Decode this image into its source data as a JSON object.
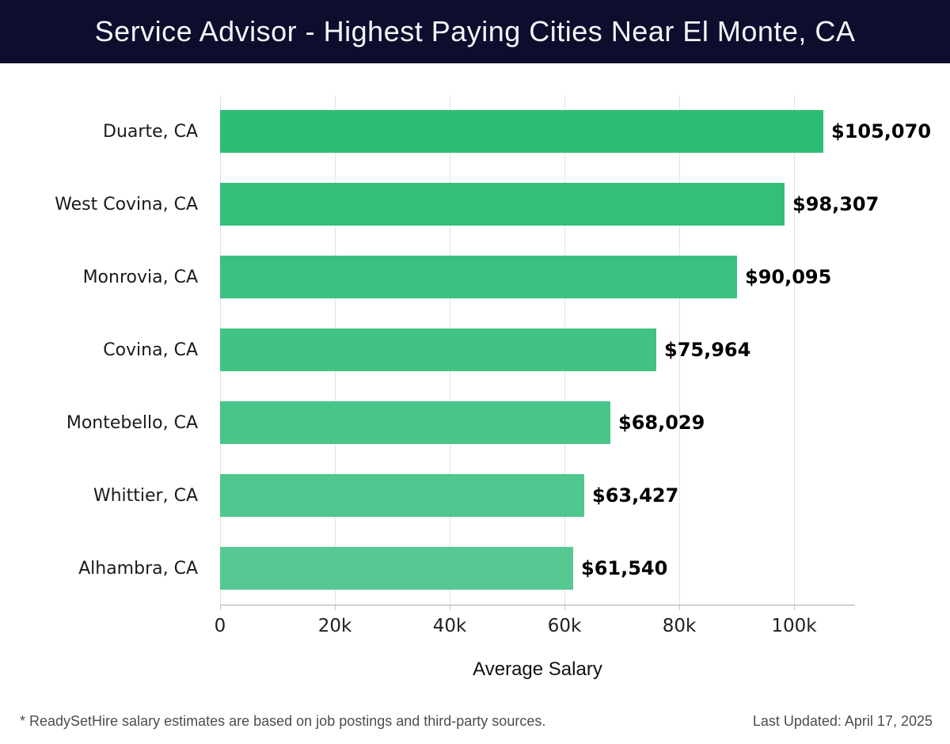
{
  "header": {
    "title": "Service Advisor - Highest Paying Cities Near El Monte, CA"
  },
  "chart_data": {
    "type": "bar",
    "orientation": "horizontal",
    "title": "Service Advisor - Highest Paying Cities Near El Monte, CA",
    "categories": [
      "Duarte, CA",
      "West Covina, CA",
      "Monrovia, CA",
      "Covina, CA",
      "Montebello, CA",
      "Whittier, CA",
      "Alhambra, CA"
    ],
    "values": [
      105070,
      98307,
      90095,
      75964,
      68029,
      63427,
      61540
    ],
    "value_labels": [
      "$105,070",
      "$98,307",
      "$90,095",
      "$75,964",
      "$68,029",
      "$63,427",
      "$61,540"
    ],
    "bar_colors": [
      "#2cbd74",
      "#33bf79",
      "#3ac17f",
      "#41c384",
      "#48c589",
      "#4fc78e",
      "#56c993"
    ],
    "xlabel": "Average Salary",
    "x_ticks": [
      {
        "value": 0,
        "label": "0"
      },
      {
        "value": 20000,
        "label": "20k"
      },
      {
        "value": 40000,
        "label": "40k"
      },
      {
        "value": 60000,
        "label": "60k"
      },
      {
        "value": 80000,
        "label": "80k"
      },
      {
        "value": 100000,
        "label": "100k"
      }
    ],
    "xlim": [
      0,
      110620
    ],
    "grid": true,
    "legend": false
  },
  "footer": {
    "disclaimer": "* ReadySetHire salary estimates are based on job postings and third-party sources.",
    "last_updated": "Last Updated: April 17, 2025"
  },
  "colors": {
    "background": "#ffffff",
    "header_bg": "#0d0d2e",
    "title_text": "#f4f5fa",
    "gridline": "#e2e2e2",
    "axis_line": "#ababab",
    "tick_mark": "#c6c6c6",
    "tick_text": "#1f1f1f",
    "category_text": "#1a1a1a",
    "value_text": "#000000",
    "footer_text": "#4d4d4d"
  }
}
